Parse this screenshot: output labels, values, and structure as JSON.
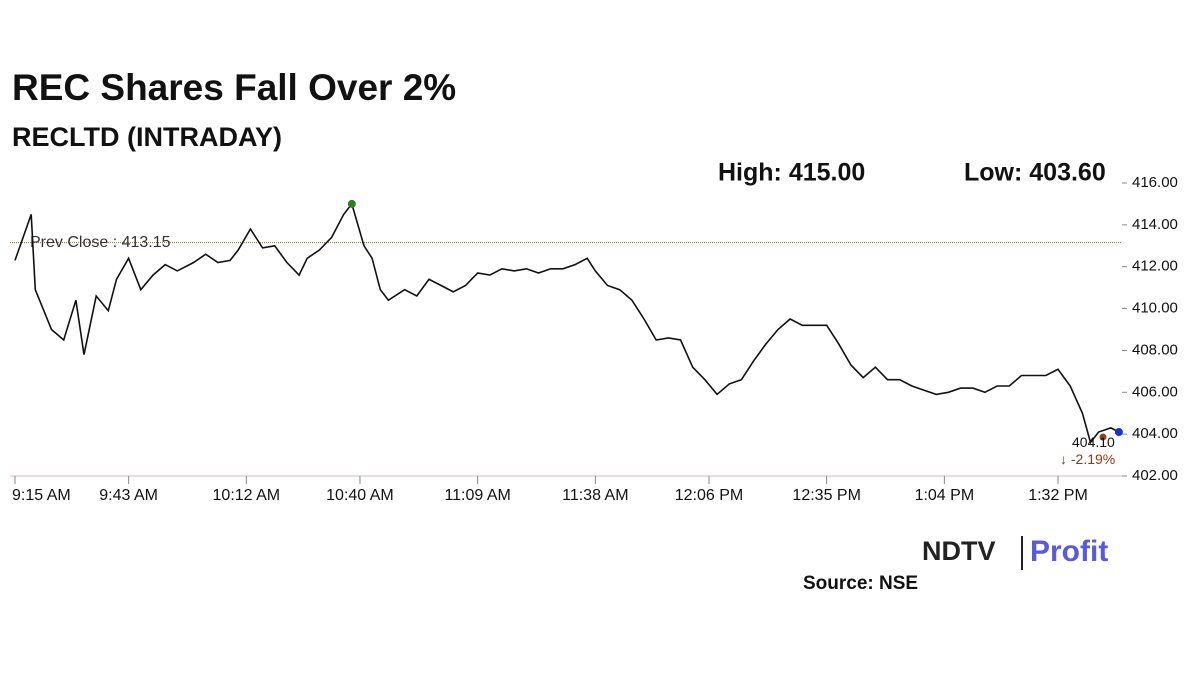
{
  "chart_data": {
    "type": "line",
    "title": "REC Shares Fall Over 2%",
    "subtitle": "RECLTD (INTRADAY)",
    "high_text": "High: 415.00",
    "low_text": "Low: 403.60",
    "source": "Source: NSE",
    "logo": [
      "NDTV",
      "Profit"
    ],
    "color": "#111111",
    "x": [
      "9:15 AM",
      "9:19 AM",
      "9:20 AM",
      "9:24 AM",
      "9:27 AM",
      "9:30 AM",
      "9:32 AM",
      "9:35 AM",
      "9:38 AM",
      "9:40 AM",
      "9:43 AM",
      "9:46 AM",
      "9:49 AM",
      "9:52 AM",
      "9:55 AM",
      "9:59 AM",
      "10:02 AM",
      "10:05 AM",
      "10:08 AM",
      "10:10 AM",
      "10:13 AM",
      "10:16 AM",
      "10:19 AM",
      "10:22 AM",
      "10:25 AM",
      "10:27 AM",
      "10:30 AM",
      "10:33 AM",
      "10:36 AM",
      "10:38 AM",
      "10:41 AM",
      "10:43 AM",
      "10:45 AM",
      "10:47 AM",
      "10:51 AM",
      "10:54 AM",
      "10:57 AM",
      "11:00 AM",
      "11:03 AM",
      "11:06 AM",
      "11:09 AM",
      "11:12 AM",
      "11:15 AM",
      "11:18 AM",
      "11:21 AM",
      "11:24 AM",
      "11:27 AM",
      "11:30 AM",
      "11:33 AM",
      "11:36 AM",
      "11:38 AM",
      "11:41 AM",
      "11:44 AM",
      "11:47 AM",
      "11:50 AM",
      "11:53 AM",
      "11:56 AM",
      "11:59 AM",
      "12:02 PM",
      "12:05 PM",
      "12:08 PM",
      "12:11 PM",
      "12:14 PM",
      "12:17 PM",
      "12:20 PM",
      "12:23 PM",
      "12:26 PM",
      "12:29 PM",
      "12:32 PM",
      "12:35 PM",
      "12:38 PM",
      "12:41 PM",
      "12:44 PM",
      "12:47 PM",
      "12:50 PM",
      "12:53 PM",
      "12:56 PM",
      "12:59 PM",
      "1:02 PM",
      "1:05 PM",
      "1:08 PM",
      "1:11 PM",
      "1:14 PM",
      "1:17 PM",
      "1:20 PM",
      "1:23 PM",
      "1:26 PM",
      "1:29 PM",
      "1:32 PM",
      "1:35 PM",
      "1:38 PM",
      "1:40 PM",
      "1:42 PM",
      "1:45 PM",
      "1:47 PM"
    ],
    "values": [
      412.3,
      414.5,
      410.9,
      409.0,
      408.5,
      410.4,
      407.8,
      410.6,
      409.9,
      411.4,
      412.4,
      410.9,
      411.6,
      412.1,
      411.8,
      412.2,
      412.6,
      412.2,
      412.3,
      412.8,
      413.8,
      412.9,
      413.0,
      412.2,
      411.6,
      412.4,
      412.8,
      413.4,
      414.5,
      415.0,
      413.0,
      412.4,
      410.9,
      410.4,
      410.9,
      410.6,
      411.4,
      411.1,
      410.8,
      411.1,
      411.7,
      411.6,
      411.9,
      411.8,
      411.9,
      411.7,
      411.9,
      411.9,
      412.1,
      412.4,
      411.8,
      411.1,
      410.9,
      410.4,
      409.5,
      408.5,
      408.6,
      408.5,
      407.2,
      406.6,
      405.9,
      406.4,
      406.6,
      407.5,
      408.3,
      409.0,
      409.5,
      409.2,
      409.2,
      409.2,
      408.3,
      407.3,
      406.7,
      407.2,
      406.6,
      406.6,
      406.3,
      406.1,
      405.9,
      406.0,
      406.2,
      406.2,
      406.0,
      406.3,
      406.3,
      406.8,
      406.8,
      406.8,
      407.1,
      406.3,
      405.0,
      403.6,
      404.1,
      404.3,
      404.1
    ],
    "xticks": [
      "9:15 AM",
      "9:43 AM",
      "10:12 AM",
      "10:40 AM",
      "11:09 AM",
      "11:38 AM",
      "12:06 PM",
      "12:35 PM",
      "1:04 PM",
      "1:32 PM"
    ],
    "ylim": [
      402,
      416
    ],
    "yticks": [
      {
        "value": 402,
        "label": "402.00"
      },
      {
        "value": 404,
        "label": "404.00"
      },
      {
        "value": 406,
        "label": "406.00"
      },
      {
        "value": 408,
        "label": "408.00"
      },
      {
        "value": 410,
        "label": "410.00"
      },
      {
        "value": 412,
        "label": "412.00"
      },
      {
        "value": 414,
        "label": "414.00"
      },
      {
        "value": 416,
        "label": "416.00"
      }
    ],
    "prev_close": {
      "value": 413.15,
      "label": "Prev Close : 413.15"
    },
    "last": {
      "value": 404.1,
      "label": "404.10"
    },
    "change": "↓ -2.19%"
  }
}
